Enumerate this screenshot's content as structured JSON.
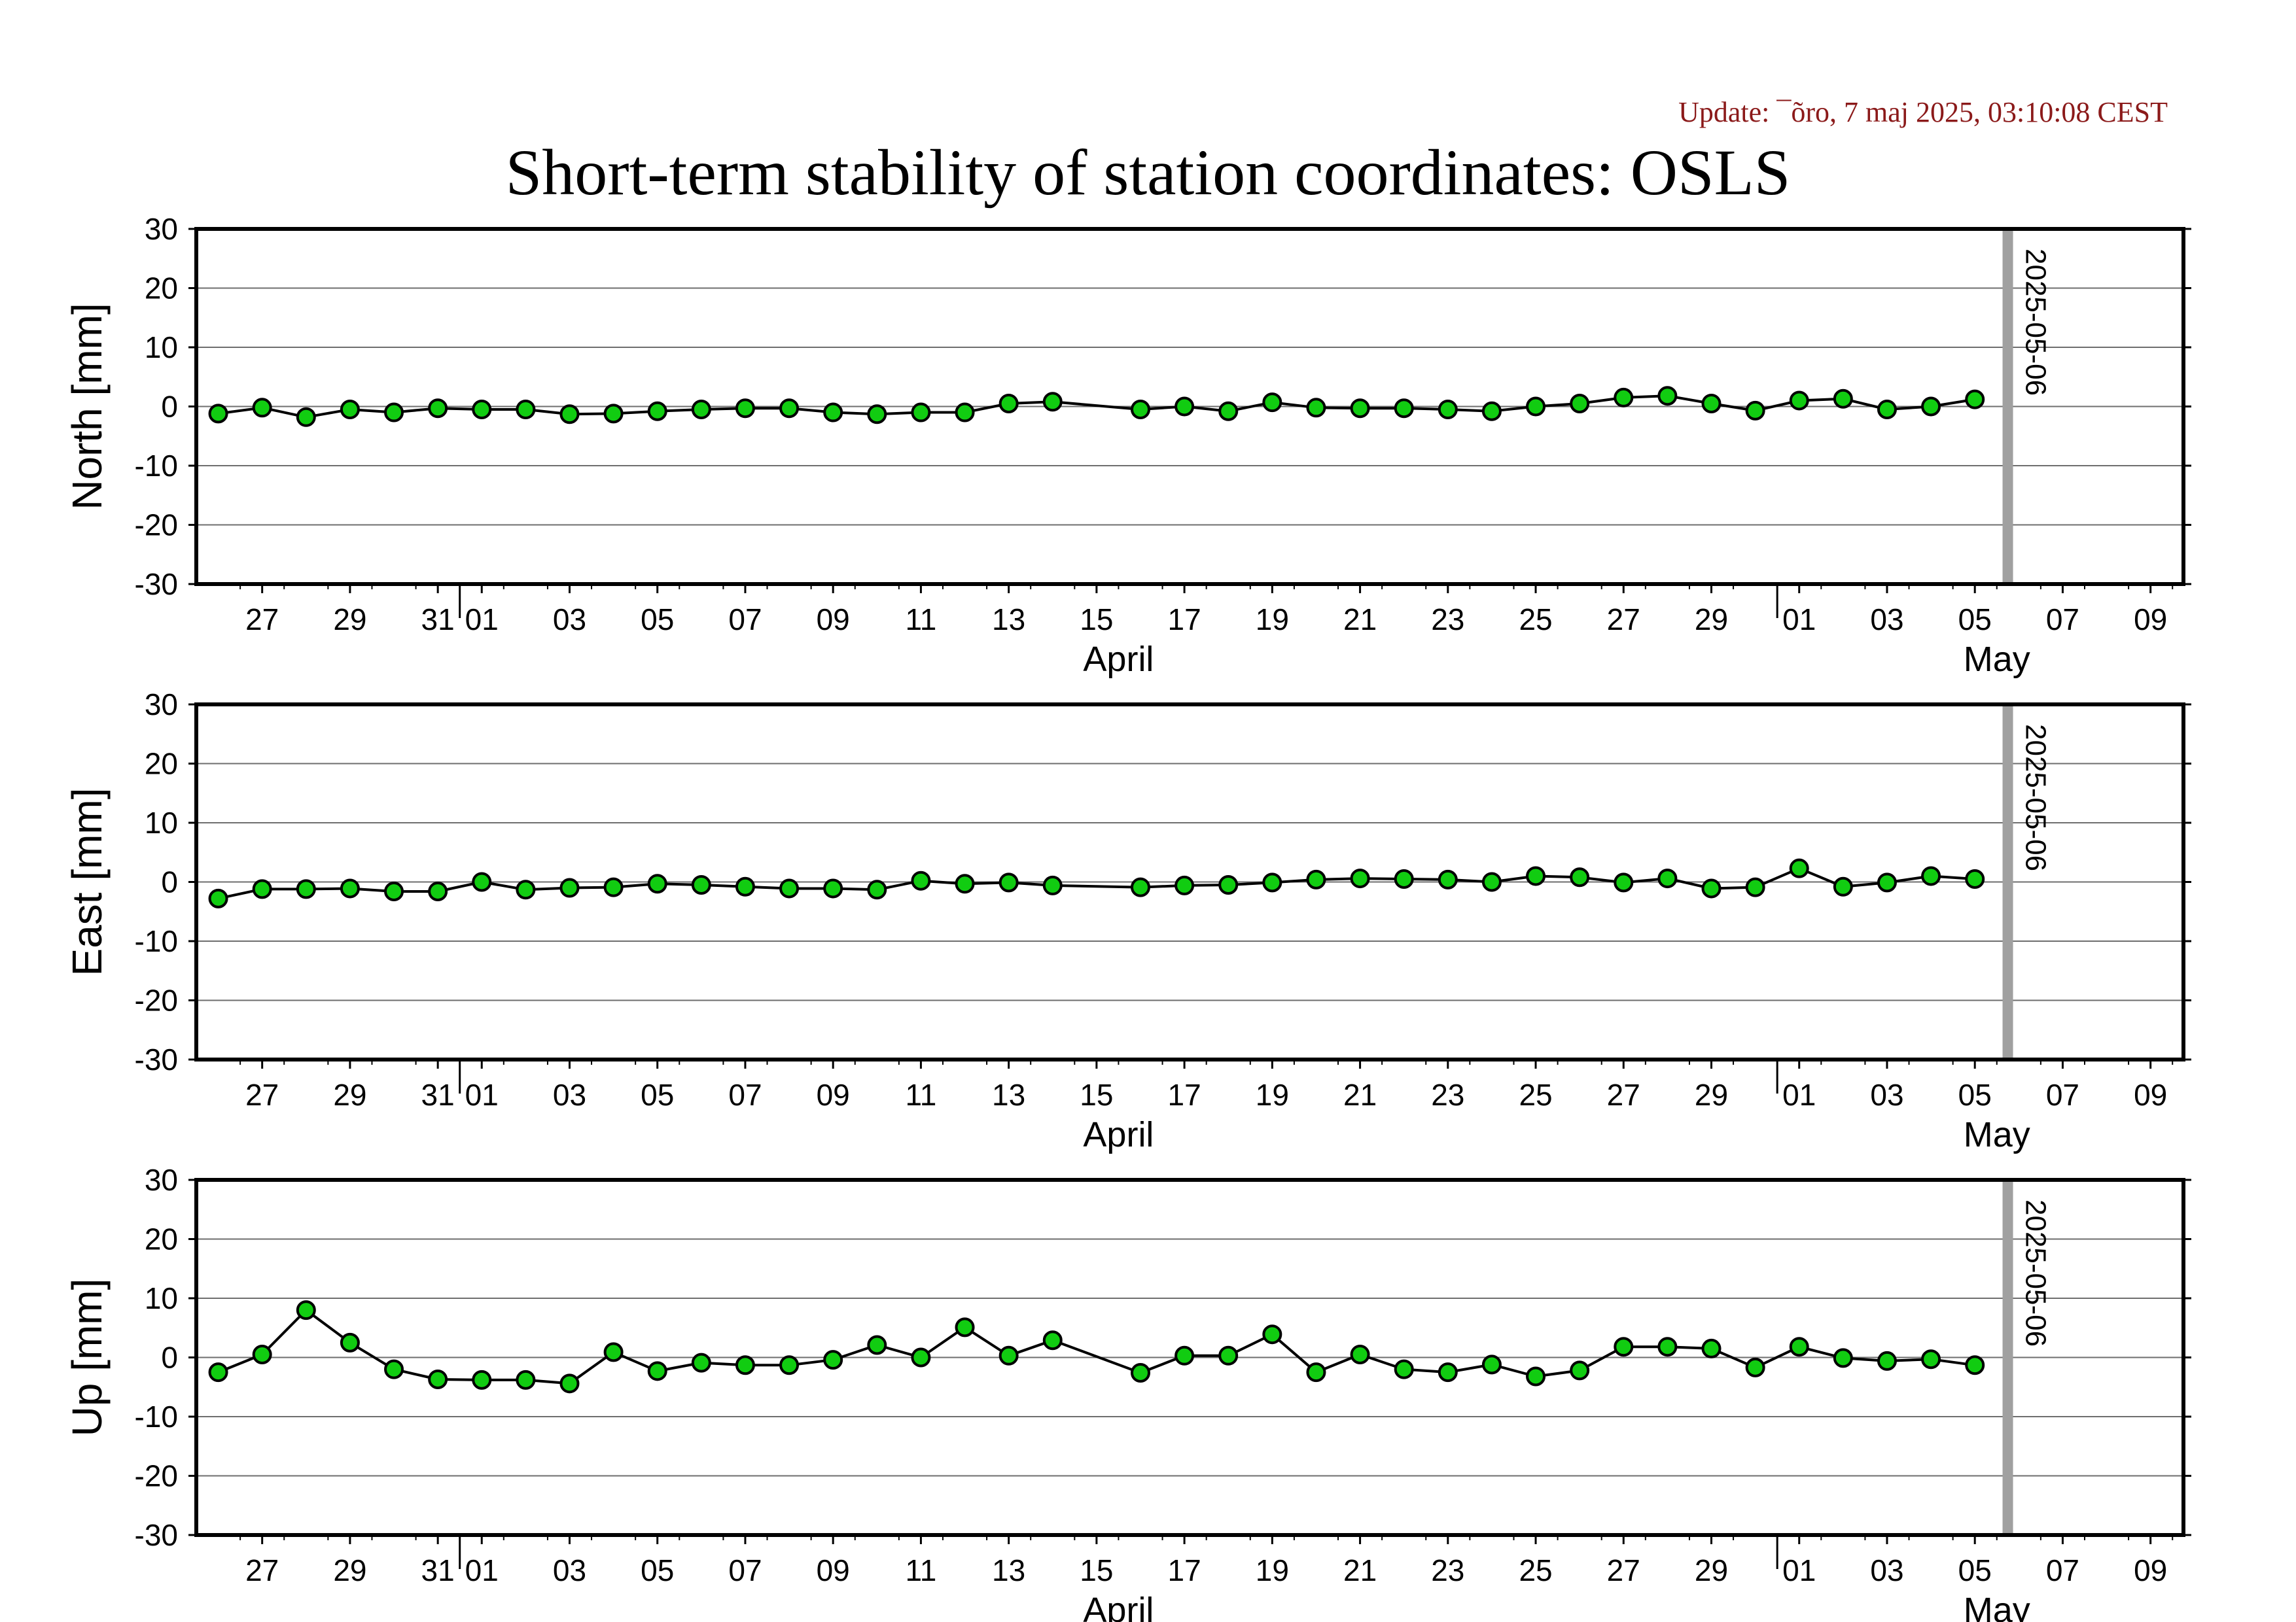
{
  "update_text": "Update: ¯õro, 7 maj 2025, 03:10:08 CEST",
  "title": "Short-term stability of station coordinates: OSLS",
  "colors": {
    "marker_fill": "#11cc11",
    "marker_stroke": "#000000",
    "line": "#000000",
    "today_bar": "#a0a0a0",
    "update_text": "#8b1a1a"
  },
  "chart_data": {
    "type": "line",
    "x_dates": [
      "03-26",
      "03-27",
      "03-28",
      "03-29",
      "03-30",
      "03-31",
      "04-01",
      "04-02",
      "04-03",
      "04-04",
      "04-05",
      "04-06",
      "04-07",
      "04-08",
      "04-09",
      "04-10",
      "04-11",
      "04-12",
      "04-13",
      "04-14",
      "04-16",
      "04-17",
      "04-18",
      "04-19",
      "04-20",
      "04-21",
      "04-22",
      "04-23",
      "04-24",
      "04-25",
      "04-26",
      "04-27",
      "04-28",
      "04-29",
      "04-30",
      "05-01",
      "05-02",
      "05-03",
      "05-04",
      "05-05"
    ],
    "xlim": [
      "2025-03-26",
      "2025-05-10"
    ],
    "x_tick_labels": [
      "27",
      "29",
      "31",
      "01",
      "03",
      "05",
      "07",
      "09",
      "11",
      "13",
      "15",
      "17",
      "19",
      "21",
      "23",
      "25",
      "27",
      "29",
      "01",
      "03",
      "05",
      "07",
      "09"
    ],
    "month_labels": [
      "April",
      "May"
    ],
    "marker_label": "2025-05-06",
    "ylim": [
      -30,
      30
    ],
    "y_ticks": [
      30,
      20,
      10,
      0,
      -10,
      -20,
      -30
    ],
    "grid": true,
    "panels": [
      {
        "ylabel": "North [mm]",
        "values": [
          -1.2,
          -0.2,
          -1.8,
          -0.5,
          -1.0,
          -0.3,
          -0.5,
          -0.5,
          -1.3,
          -1.2,
          -0.8,
          -0.5,
          -0.3,
          -0.3,
          -1.0,
          -1.3,
          -1.0,
          -1.0,
          0.5,
          0.8,
          -0.5,
          0.0,
          -0.8,
          0.7,
          -0.2,
          -0.3,
          -0.3,
          -0.5,
          -0.8,
          0.0,
          0.5,
          1.5,
          1.8,
          0.5,
          -0.7,
          1.0,
          1.3,
          -0.5,
          0.0,
          1.2
        ]
      },
      {
        "ylabel": "East [mm]",
        "values": [
          -2.8,
          -1.2,
          -1.2,
          -1.1,
          -1.6,
          -1.6,
          0.0,
          -1.3,
          -1.0,
          -0.9,
          -0.3,
          -0.5,
          -0.8,
          -1.1,
          -1.1,
          -1.3,
          0.2,
          -0.3,
          -0.1,
          -0.6,
          -0.9,
          -0.6,
          -0.5,
          -0.1,
          0.4,
          0.6,
          0.5,
          0.4,
          0.0,
          1.0,
          0.8,
          -0.1,
          0.6,
          -1.1,
          -0.9,
          2.3,
          -0.8,
          -0.1,
          1.0,
          0.5
        ]
      },
      {
        "ylabel": "Up [mm]",
        "values": [
          -2.5,
          0.5,
          8.0,
          2.5,
          -2.0,
          -3.7,
          -3.8,
          -3.8,
          -4.4,
          0.9,
          -2.3,
          -0.9,
          -1.3,
          -1.3,
          -0.4,
          2.1,
          0.0,
          5.1,
          0.3,
          2.9,
          -2.6,
          0.3,
          0.3,
          3.9,
          -2.5,
          0.5,
          -2.0,
          -2.5,
          -1.2,
          -3.2,
          -2.2,
          1.8,
          1.8,
          1.5,
          -1.7,
          1.8,
          -0.1,
          -0.6,
          -0.3,
          -1.3
        ]
      }
    ]
  }
}
